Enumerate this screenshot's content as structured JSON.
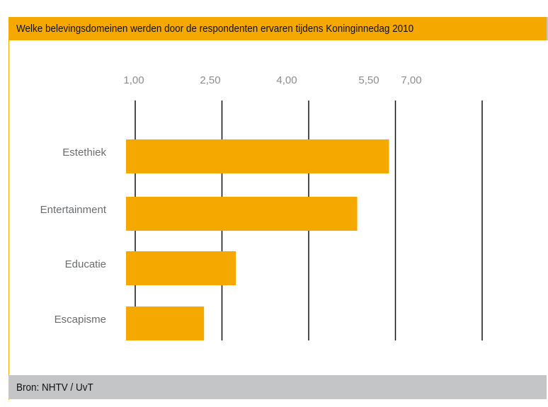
{
  "title": "Welke belevingsdomeinen werden door de respondenten ervaren tijdens Koninginnedag 2010",
  "source": "Bron: NHTV / UvT",
  "colors": {
    "bar": "#F5A800",
    "footer": "#C4C5C6",
    "grid": "#111111"
  },
  "chart_data": {
    "type": "bar",
    "orientation": "horizontal",
    "title": "Welke belevingsdomeinen werden door de respondenten ervaren tijdens Koninginnedag 2010",
    "categories": [
      "Estethiek",
      "Entertainment",
      "Educatie",
      "Escapisme"
    ],
    "values": [
      5.39,
      4.84,
      2.74,
      2.19
    ],
    "tick_values": [
      1.0,
      2.5,
      4.0,
      5.5,
      7.0
    ],
    "tick_labels": [
      "1,00",
      "2,50",
      "4,00",
      "5,50",
      "7,00"
    ],
    "xlim": [
      1.0,
      7.0
    ],
    "grid": true,
    "xlabel": "",
    "ylabel": ""
  }
}
